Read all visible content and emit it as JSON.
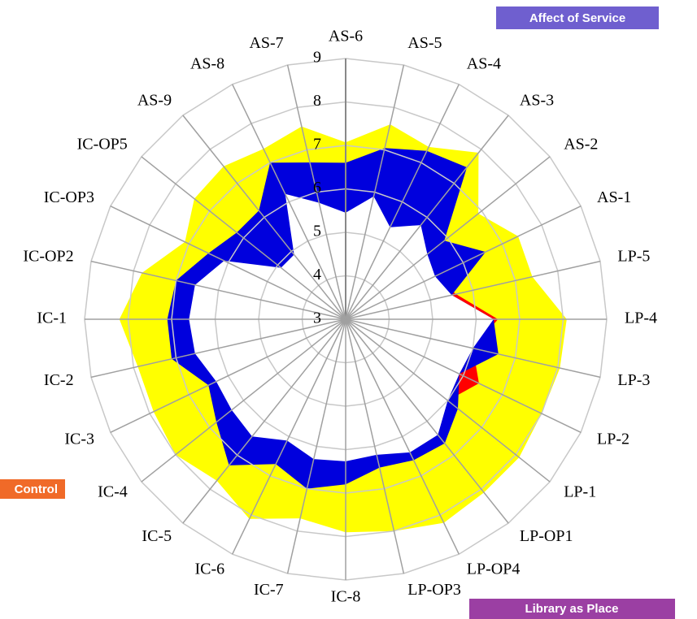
{
  "chart_data": {
    "type": "radar",
    "categories": [
      "AS-6",
      "AS-5",
      "AS-4",
      "AS-3",
      "AS-2",
      "AS-1",
      "LP-5",
      "LP-4",
      "LP-3",
      "LP-2",
      "LP-1",
      "LP-OP1",
      "LP-OP4",
      "LP-OP3",
      "IC-8",
      "IC-7",
      "IC-6",
      "IC-5",
      "IC-4",
      "IC-3",
      "IC-2",
      "IC-1",
      "IC-OP2",
      "IC-OP3",
      "IC-OP5",
      "AS-9",
      "AS-8",
      "AS-7"
    ],
    "series": [
      {
        "color": "#ffff00",
        "values": [
          7.07,
          7.6,
          7.4,
          7.9,
          6.9,
          7.4,
          7.4,
          8.08,
          8.05,
          8.0,
          8.1,
          8.1,
          8.2,
          8.0,
          7.9,
          7.7,
          8.1,
          7.75,
          8.0,
          7.9,
          7.9,
          8.2,
          7.8,
          7.1,
          7.45,
          7.5,
          7.35,
          7.55
        ]
      },
      {
        "color": "#ff0000",
        "values": [
          5.45,
          5.9,
          5.35,
          5.77,
          5.4,
          5.28,
          5.6,
          6.5,
          6.0,
          6.4,
          6.0,
          6.4,
          6.4,
          6.2,
          6.27,
          6.3,
          6.1,
          6.45,
          6.35,
          6.3,
          6.55,
          6.6,
          6.55,
          6.1,
          4.9,
          4.9,
          6.2,
          5.75
        ]
      },
      {
        "color": "#0000dd",
        "values": [
          6.6,
          7.04,
          7.3,
          7.47,
          5.9,
          6.57,
          5.5,
          6.4,
          6.6,
          5.9,
          6.3,
          6.65,
          6.6,
          6.5,
          6.8,
          7.0,
          6.7,
          7.3,
          6.8,
          6.5,
          7.1,
          7.1,
          7.0,
          6.5,
          6.2,
          6.2,
          7.0,
          6.7
        ]
      }
    ],
    "rlim": [
      3,
      9
    ],
    "rticks": [
      3,
      4,
      5,
      6,
      7,
      8,
      9
    ],
    "grid": true,
    "dimension_labels": [
      {
        "text": "Affect of Service",
        "color": "#6f5fcf"
      },
      {
        "text": "Library as Place",
        "color": "#9b3fa3"
      },
      {
        "text": "Control",
        "color": "#f06a28"
      }
    ]
  }
}
